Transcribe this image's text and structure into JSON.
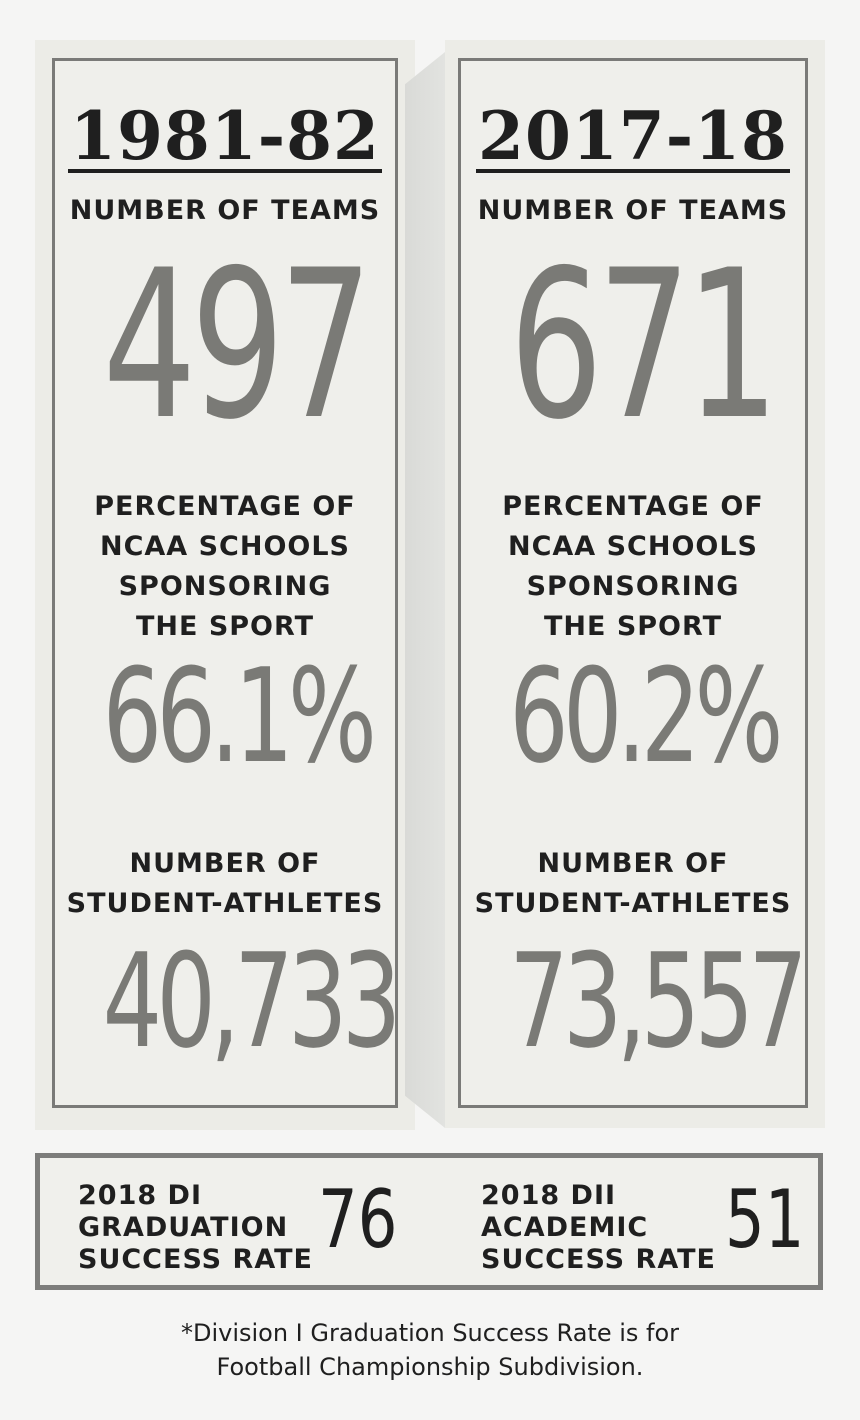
{
  "left": {
    "year": "1981-82",
    "teams_label": "NUMBER OF TEAMS",
    "teams_value": "497",
    "pct_label": "PERCENTAGE OF\nNCAA SCHOOLS\nSPONSORING\nTHE SPORT",
    "pct_value": "66.1%",
    "athletes_label": "NUMBER OF\nSTUDENT-ATHLETES",
    "athletes_value": "40,733"
  },
  "right": {
    "year": "2017-18",
    "teams_label": "NUMBER OF TEAMS",
    "teams_value": "671",
    "pct_label": "PERCENTAGE OF\nNCAA SCHOOLS\nSPONSORING\nTHE SPORT",
    "pct_value": "60.2%",
    "athletes_label": "NUMBER OF\nSTUDENT-ATHLETES",
    "athletes_value": "73,557"
  },
  "rates": {
    "di_label": "2018 DI\nGRADUATION\nSUCCESS RATE",
    "di_value": "76",
    "dii_label": "2018 DII\nACADEMIC\nSUCCESS RATE",
    "dii_value": "51"
  },
  "footnote": "*Division I Graduation Success Rate is for\nFootball Championship Subdivision."
}
